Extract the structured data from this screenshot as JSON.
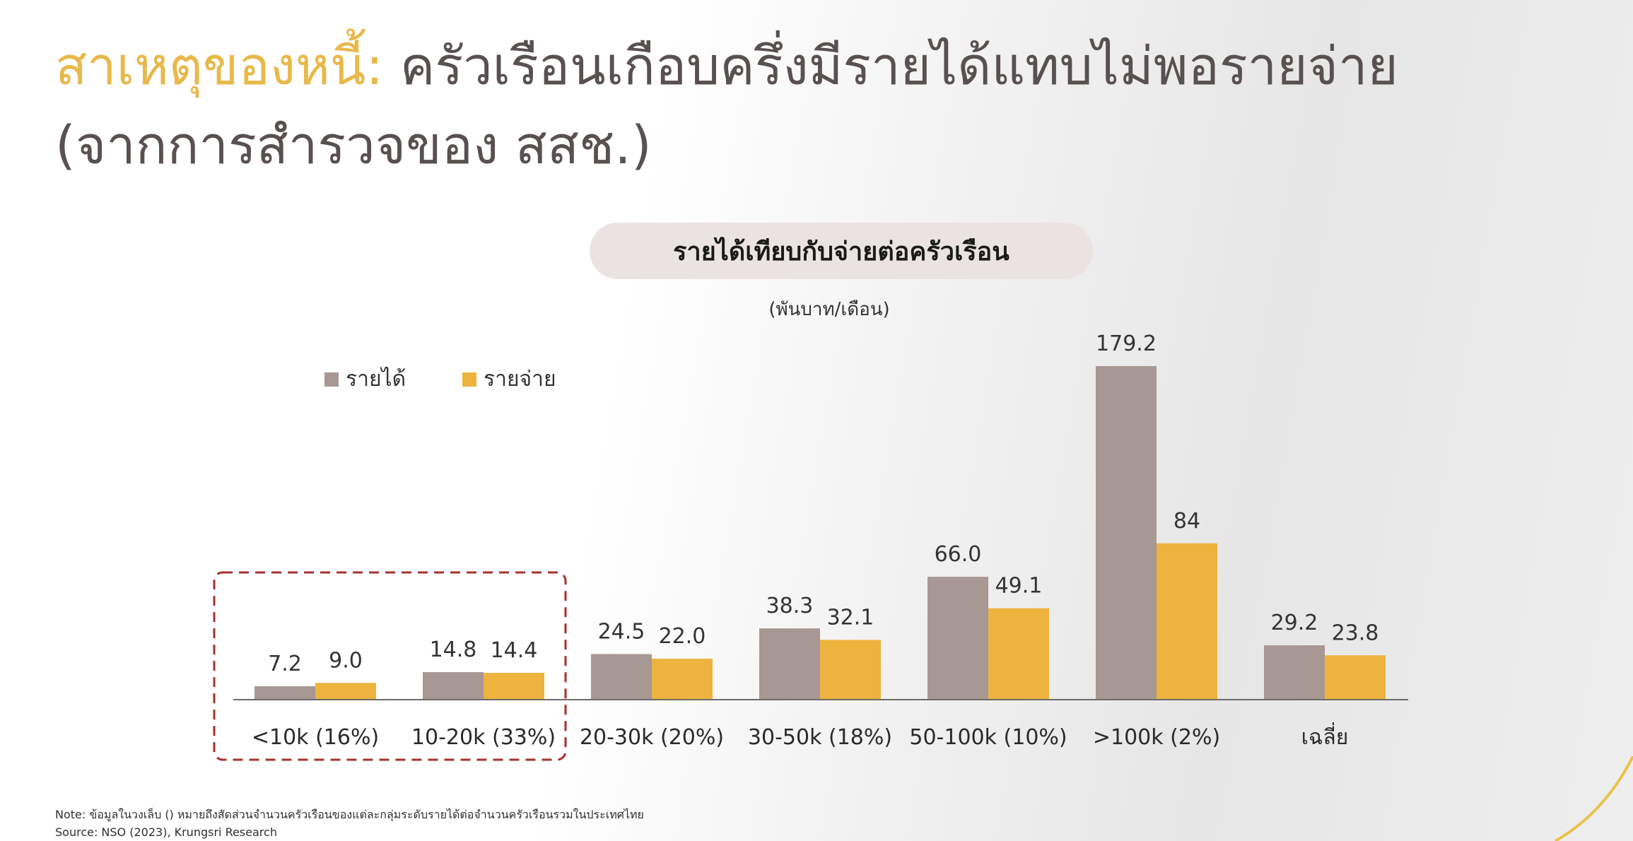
{
  "title": {
    "accent": "สาเหตุของหนี้:",
    "rest": "ครัวเรือนเกือบครึ่งมีรายได้แทบไม่พอรายจ่าย",
    "line2": "(จากการสำรวจของ สสช.)"
  },
  "chart_data": {
    "type": "bar",
    "title": "รายได้เทียบกับจ่ายต่อครัวเรือน",
    "subtitle": "(พันบาท/เดือน)",
    "categories": [
      "<10k (16%)",
      "10-20k (33%)",
      "20-30k (20%)",
      "30-50k (18%)",
      "50-100k (10%)",
      ">100k (2%)",
      "เฉลี่ย"
    ],
    "series": [
      {
        "name": "รายได้",
        "color": "#a89894",
        "values": [
          7.2,
          14.8,
          24.5,
          38.3,
          66.0,
          179.2,
          29.2
        ],
        "labels": [
          "7.2",
          "14.8",
          "24.5",
          "38.3",
          "66.0",
          "179.2",
          "29.2"
        ]
      },
      {
        "name": "รายจ่าย",
        "color": "#edb33e",
        "values": [
          9.0,
          14.4,
          22.0,
          32.1,
          49.1,
          84,
          23.8
        ],
        "labels": [
          "9.0",
          "14.4",
          "22.0",
          "32.1",
          "49.1",
          "84",
          "23.8"
        ]
      }
    ],
    "ylim": [
      0,
      179.2
    ],
    "legend": "top-left",
    "grid": false,
    "highlight": {
      "categories": [
        "<10k (16%)",
        "10-20k (33%)"
      ],
      "style": "dashed-box",
      "color": "#a8302e"
    }
  },
  "footer": {
    "note": "Note: ข้อมูลในวงเล็บ () หมายถึงสัดส่วนจำนวนครัวเรือนของแต่ละกลุ่มระดับรายได้ต่อจำนวนครัวเรือนรวมในประเทศไทย",
    "source": "Source: NSO (2023), Krungsri Research"
  },
  "colors": {
    "accent": "#e8b84a",
    "text": "#595050"
  }
}
